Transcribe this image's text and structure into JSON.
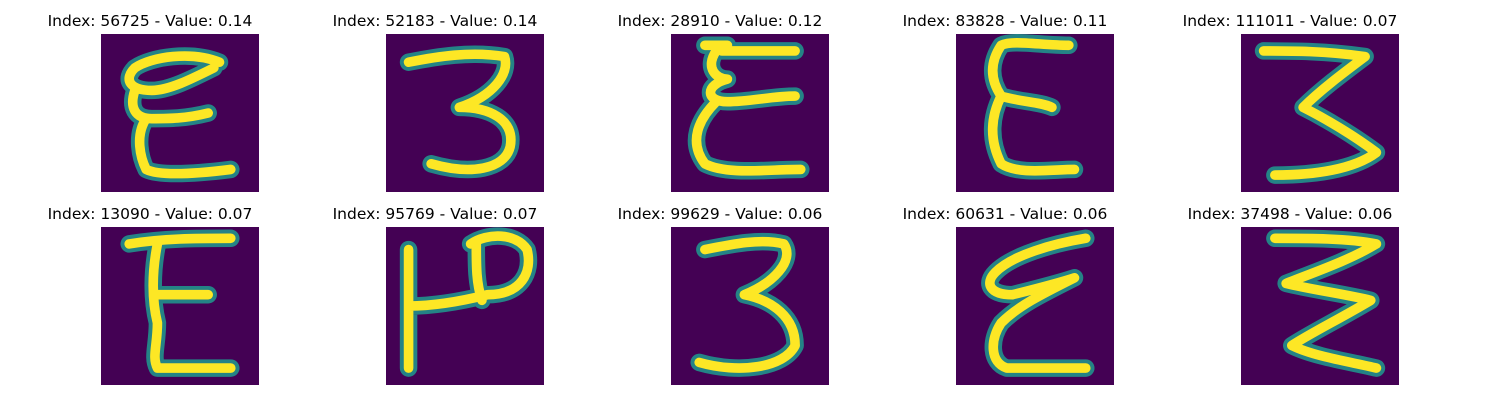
{
  "colors": {
    "background": "#440154",
    "stroke_edge": "#21918c",
    "stroke_core": "#fde725",
    "title_text": "#000000"
  },
  "panels": [
    {
      "index": "56725",
      "value": "0.14",
      "title": "Index: 56725 - Value: 0.14"
    },
    {
      "index": "52183",
      "value": "0.14",
      "title": "Index: 52183 - Value: 0.14"
    },
    {
      "index": "28910",
      "value": "0.12",
      "title": "Index: 28910 - Value: 0.12"
    },
    {
      "index": "83828",
      "value": "0.11",
      "title": "Index: 83828 - Value: 0.11"
    },
    {
      "index": "111011",
      "value": "0.07",
      "title": "Index: 111011 - Value: 0.07"
    },
    {
      "index": "13090",
      "value": "0.07",
      "title": "Index: 13090 - Value: 0.07"
    },
    {
      "index": "95769",
      "value": "0.07",
      "title": "Index: 95769 - Value: 0.07"
    },
    {
      "index": "99629",
      "value": "0.06",
      "title": "Index: 99629 - Value: 0.06"
    },
    {
      "index": "60631",
      "value": "0.06",
      "title": "Index: 60631 - Value: 0.06"
    },
    {
      "index": "37498",
      "value": "0.06",
      "title": "Index: 37498 - Value: 0.06"
    }
  ]
}
